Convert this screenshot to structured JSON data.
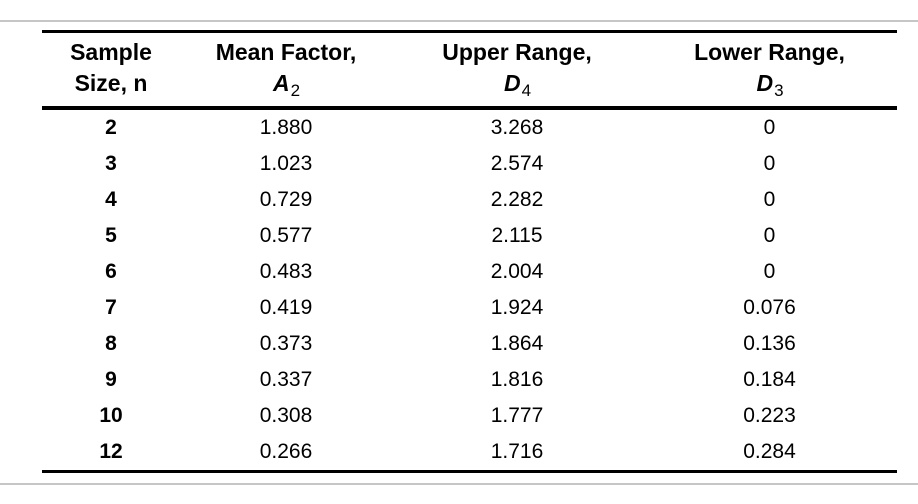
{
  "page": {
    "background_color": "#ffffff",
    "divider_color": "#c6c6c6",
    "rule_color": "#000000"
  },
  "table": {
    "columns": [
      {
        "header_line1": "Sample",
        "header_line2": "Size, n"
      },
      {
        "header_line1": "Mean Factor,",
        "symbol": "A",
        "subscript": "2"
      },
      {
        "header_line1": "Upper Range,",
        "symbol": "D",
        "subscript": "4"
      },
      {
        "header_line1": "Lower Range,",
        "symbol": "D",
        "subscript": "3"
      }
    ],
    "rows": [
      {
        "n": "2",
        "a2": "1.880",
        "d4": "3.268",
        "d3": "0"
      },
      {
        "n": "3",
        "a2": "1.023",
        "d4": "2.574",
        "d3": "0"
      },
      {
        "n": "4",
        "a2": "0.729",
        "d4": "2.282",
        "d3": "0"
      },
      {
        "n": "5",
        "a2": "0.577",
        "d4": "2.115",
        "d3": "0"
      },
      {
        "n": "6",
        "a2": "0.483",
        "d4": "2.004",
        "d3": "0"
      },
      {
        "n": "7",
        "a2": "0.419",
        "d4": "1.924",
        "d3": "0.076"
      },
      {
        "n": "8",
        "a2": "0.373",
        "d4": "1.864",
        "d3": "0.136"
      },
      {
        "n": "9",
        "a2": "0.337",
        "d4": "1.816",
        "d3": "0.184"
      },
      {
        "n": "10",
        "a2": "0.308",
        "d4": "1.777",
        "d3": "0.223"
      },
      {
        "n": "12",
        "a2": "0.266",
        "d4": "1.716",
        "d3": "0.284"
      }
    ]
  }
}
